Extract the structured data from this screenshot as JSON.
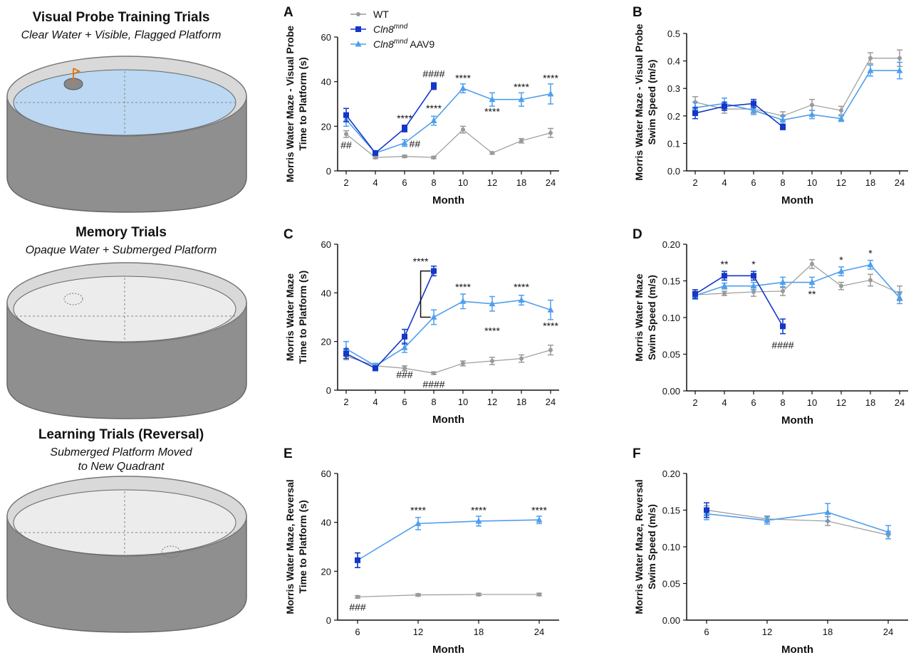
{
  "colors": {
    "wt": "#9a9a9a",
    "cln8": "#1437c8",
    "aav9": "#4f9fec",
    "water": "#bcd8f2",
    "tank": "#8f8f8f",
    "tank_light": "#ececec"
  },
  "left": {
    "headings": [
      {
        "title": "Visual Probe Training Trials",
        "subtitle": "Clear Water + Visible, Flagged Platform"
      },
      {
        "title": "Memory Trials",
        "subtitle": "Opaque Water + Submerged Platform"
      },
      {
        "title": "Learning Trials (Reversal)",
        "subtitle": "Submerged Platform Moved to New Quadrant"
      }
    ]
  },
  "legend": [
    {
      "key": "wt",
      "label": "WT",
      "sup": "",
      "suffix": ""
    },
    {
      "key": "cln8",
      "label": "Cln8",
      "sup": "mnd",
      "suffix": ""
    },
    {
      "key": "aav9",
      "label": "Cln8",
      "sup": "mnd",
      "suffix": " AAV9"
    }
  ],
  "chart_data": [
    {
      "letter": "A",
      "type": "line",
      "ylabel": [
        "Morris Water Maze - Visual Probe",
        "Time to Platform (s)"
      ],
      "xlabel": "Month",
      "categories": [
        "2",
        "4",
        "6",
        "8",
        "10",
        "12",
        "18",
        "24"
      ],
      "ylim": [
        0,
        60
      ],
      "yticks": [
        "0",
        "20",
        "40",
        "60"
      ],
      "series": [
        {
          "key": "wt",
          "values": [
            16.5,
            6,
            6.5,
            6,
            18.5,
            8,
            13.5,
            17
          ],
          "errors": [
            1.5,
            0.5,
            0.5,
            0.5,
            1.5,
            0.5,
            1,
            2
          ]
        },
        {
          "key": "aav9",
          "values": [
            23,
            8,
            12.5,
            22.5,
            37,
            32,
            32,
            34.5
          ],
          "errors": [
            3,
            1,
            1.5,
            2,
            2,
            3,
            3,
            4.5
          ]
        },
        {
          "key": "cln8",
          "values": [
            25,
            8,
            19,
            38,
            null,
            null,
            null,
            null
          ],
          "errors": [
            3,
            1,
            1.5,
            1.5,
            null,
            null,
            null,
            null
          ]
        }
      ],
      "annotations": [
        {
          "text": "##",
          "cat": 0,
          "y": 10
        },
        {
          "text": "****",
          "cat": 2,
          "y": 22
        },
        {
          "text": "##",
          "cat": 2.35,
          "y": 10.5
        },
        {
          "text": "####",
          "cat": 3,
          "y": 42
        },
        {
          "text": "****",
          "cat": 3,
          "y": 26.5
        },
        {
          "text": "****",
          "cat": 4,
          "y": 40
        },
        {
          "text": "****",
          "cat": 5,
          "y": 25
        },
        {
          "text": "****",
          "cat": 6,
          "y": 36
        },
        {
          "text": "****",
          "cat": 7,
          "y": 40
        }
      ]
    },
    {
      "letter": "B",
      "type": "line",
      "ylabel": [
        "Morris Water Maze - Visual Probe",
        "Swim Speed (m/s)"
      ],
      "xlabel": "Month",
      "categories": [
        "2",
        "4",
        "6",
        "8",
        "10",
        "12",
        "18",
        "24"
      ],
      "ylim": [
        0,
        0.5
      ],
      "yticks": [
        "0.0",
        "0.1",
        "0.2",
        "0.3",
        "0.4",
        "0.5"
      ],
      "series": [
        {
          "key": "wt",
          "values": [
            0.25,
            0.225,
            0.225,
            0.2,
            0.24,
            0.22,
            0.41,
            0.41
          ],
          "errors": [
            0.02,
            0.015,
            0.015,
            0.015,
            0.02,
            0.015,
            0.02,
            0.03
          ]
        },
        {
          "key": "aav9",
          "values": [
            0.23,
            0.245,
            0.22,
            0.185,
            0.205,
            0.19,
            0.365,
            0.365
          ],
          "errors": [
            0.02,
            0.02,
            0.015,
            0.015,
            0.015,
            0.01,
            0.02,
            0.03
          ]
        },
        {
          "key": "cln8",
          "values": [
            0.21,
            0.235,
            0.245,
            0.16,
            null,
            null,
            null,
            null
          ],
          "errors": [
            0.02,
            0.015,
            0.015,
            0.01,
            null,
            null,
            null,
            null
          ]
        }
      ],
      "annotations": []
    },
    {
      "letter": "C",
      "type": "line",
      "ylabel": [
        "Morris  Water Maze",
        "Time to Platform (s)"
      ],
      "xlabel": "Month",
      "categories": [
        "2",
        "4",
        "6",
        "8",
        "10",
        "12",
        "18",
        "24"
      ],
      "ylim": [
        0,
        60
      ],
      "yticks": [
        "0",
        "20",
        "40",
        "60"
      ],
      "series": [
        {
          "key": "wt",
          "values": [
            14,
            10,
            9,
            7,
            11,
            12,
            13,
            16.5
          ],
          "errors": [
            1.5,
            1,
            1,
            0.5,
            1,
            1.5,
            1.5,
            2
          ]
        },
        {
          "key": "aav9",
          "values": [
            17,
            10,
            17.5,
            30,
            36.5,
            35.5,
            37,
            33
          ],
          "errors": [
            3,
            1,
            2,
            3,
            3,
            3,
            2,
            4
          ]
        },
        {
          "key": "cln8",
          "values": [
            15,
            9,
            22,
            49,
            null,
            null,
            null,
            null
          ],
          "errors": [
            2,
            1,
            3,
            2,
            null,
            null,
            null,
            null
          ]
        }
      ],
      "annotations": [
        {
          "text": "****",
          "cat": 2.55,
          "y": 51.5
        },
        {
          "text": "###",
          "cat": 2,
          "y": 5
        },
        {
          "text": "####",
          "cat": 3,
          "y": 1
        },
        {
          "text": "****",
          "cat": 4,
          "y": 41
        },
        {
          "text": "****",
          "cat": 5,
          "y": 23
        },
        {
          "text": "****",
          "cat": 6,
          "y": 41
        },
        {
          "text": "****",
          "cat": 7,
          "y": 25
        }
      ],
      "bracket": {
        "cat": 2.55,
        "y_top": 49,
        "y_bottom": 30
      }
    },
    {
      "letter": "D",
      "type": "line",
      "ylabel": [
        "Morris Water Maze",
        "Swim Speed (m/s)"
      ],
      "xlabel": "Month",
      "categories": [
        "2",
        "4",
        "6",
        "8",
        "10",
        "12",
        "18",
        "24"
      ],
      "ylim": [
        0,
        0.2
      ],
      "yticks": [
        "0.00",
        "0.05",
        "0.10",
        "0.15",
        "0.20"
      ],
      "series": [
        {
          "key": "wt",
          "values": [
            0.131,
            0.133,
            0.135,
            0.136,
            0.173,
            0.143,
            0.151,
            0.133
          ],
          "errors": [
            0.005,
            0.003,
            0.006,
            0.006,
            0.006,
            0.005,
            0.008,
            0.01
          ]
        },
        {
          "key": "aav9",
          "values": [
            0.13,
            0.143,
            0.143,
            0.148,
            0.148,
            0.163,
            0.172,
            0.127
          ],
          "errors": [
            0.005,
            0.004,
            0.005,
            0.007,
            0.007,
            0.006,
            0.006,
            0.008
          ]
        },
        {
          "key": "cln8",
          "values": [
            0.132,
            0.157,
            0.157,
            0.088,
            null,
            null,
            null,
            null
          ],
          "errors": [
            0.006,
            0.006,
            0.006,
            0.01,
            null,
            null,
            null,
            null
          ]
        }
      ],
      "annotations": [
        {
          "text": "**",
          "cat": 1,
          "y": 0.168
        },
        {
          "text": "*",
          "cat": 2,
          "y": 0.168
        },
        {
          "text": "####",
          "cat": 3,
          "y": 0.058
        },
        {
          "text": "**",
          "cat": 4,
          "y": 0.127
        },
        {
          "text": "*",
          "cat": 5,
          "y": 0.174
        },
        {
          "text": "*",
          "cat": 6,
          "y": 0.183
        }
      ]
    },
    {
      "letter": "E",
      "type": "line",
      "ylabel": [
        "Morris Water Maze, Reversal",
        "Time to Platform (s)"
      ],
      "xlabel": "Month",
      "categories": [
        "6",
        "12",
        "18",
        "24"
      ],
      "ylim": [
        0,
        60
      ],
      "yticks": [
        "0",
        "20",
        "40",
        "60"
      ],
      "series": [
        {
          "key": "wt",
          "values": [
            9.5,
            10.3,
            10.5,
            10.5
          ],
          "errors": [
            0.5,
            0.5,
            0.5,
            0.5
          ]
        },
        {
          "key": "aav9",
          "values": [
            24.5,
            39.5,
            40.5,
            41
          ],
          "errors": [
            3,
            2.5,
            2,
            1.5
          ]
        },
        {
          "key": "cln8",
          "values": [
            24.5,
            null,
            null,
            null
          ],
          "errors": [
            3,
            null,
            null,
            null
          ]
        }
      ],
      "annotations": [
        {
          "text": "###",
          "cat": 0,
          "y": 4
        },
        {
          "text": "****",
          "cat": 1,
          "y": 43.5
        },
        {
          "text": "****",
          "cat": 2,
          "y": 43.5
        },
        {
          "text": "****",
          "cat": 3,
          "y": 43.5
        }
      ]
    },
    {
      "letter": "F",
      "type": "line",
      "ylabel": [
        "Morris Water Maze, Reversal",
        "Swim Speed (m/s)"
      ],
      "xlabel": "Month",
      "categories": [
        "6",
        "12",
        "18",
        "24"
      ],
      "ylim": [
        0,
        0.2
      ],
      "yticks": [
        "0.00",
        "0.05",
        "0.10",
        "0.15",
        "0.20"
      ],
      "series": [
        {
          "key": "wt",
          "values": [
            0.15,
            0.138,
            0.135,
            0.116
          ],
          "errors": [
            0.006,
            0.004,
            0.006,
            0.005
          ]
        },
        {
          "key": "aav9",
          "values": [
            0.145,
            0.136,
            0.147,
            0.12
          ],
          "errors": [
            0.008,
            0.005,
            0.012,
            0.009
          ]
        },
        {
          "key": "cln8",
          "values": [
            0.15,
            null,
            null,
            null
          ],
          "errors": [
            0.01,
            null,
            null,
            null
          ]
        }
      ],
      "annotations": []
    }
  ]
}
